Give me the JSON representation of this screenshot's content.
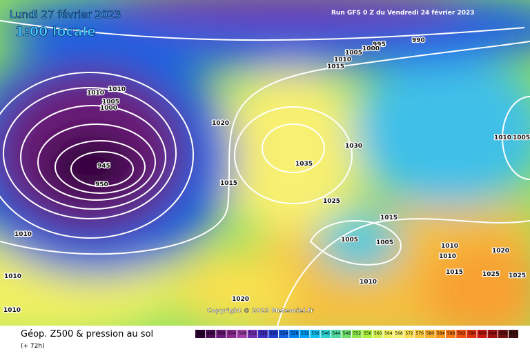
{
  "header": {
    "date": "Lundi 27 février 2023",
    "time": "1:00 locale",
    "run": "Run GFS 0 Z du Vendredi 24 février 2023"
  },
  "copyright": "Copyright © 2023 Meteociel.fr",
  "footer": {
    "title": "Géop. Z500 & pression au sol",
    "lead": "(+ 72h)"
  },
  "legend": {
    "values": [
      492,
      496,
      500,
      504,
      508,
      512,
      516,
      520,
      524,
      528,
      532,
      536,
      540,
      544,
      548,
      552,
      556,
      560,
      564,
      568,
      572,
      576,
      580,
      584,
      588,
      592,
      596,
      600,
      604,
      608,
      612
    ],
    "colors": [
      "#2a0030",
      "#4a0a55",
      "#6a1a78",
      "#8a2a90",
      "#a040a8",
      "#7030b0",
      "#4030c0",
      "#2040d0",
      "#1060e0",
      "#0080f0",
      "#00a0f8",
      "#10c0f0",
      "#30d0d0",
      "#50d8a0",
      "#70e070",
      "#90e850",
      "#b0f040",
      "#d0f050",
      "#f0f060",
      "#f8f070",
      "#f8e050",
      "#f8c840",
      "#f8b030",
      "#f89820",
      "#f87818",
      "#f05010",
      "#e03010",
      "#c81810",
      "#a01010",
      "#701010",
      "#401010"
    ]
  },
  "isobars": [
    995,
    990,
    1005,
    1000,
    1010,
    1015,
    1010,
    1010,
    1005,
    1000,
    945,
    950,
    1020,
    1030,
    1035,
    1015,
    1025,
    1015,
    1005,
    1005,
    1010,
    1020,
    1010,
    1015,
    1025,
    1025,
    1010,
    1020,
    1010,
    1010,
    1010,
    1010,
    1005
  ]
}
